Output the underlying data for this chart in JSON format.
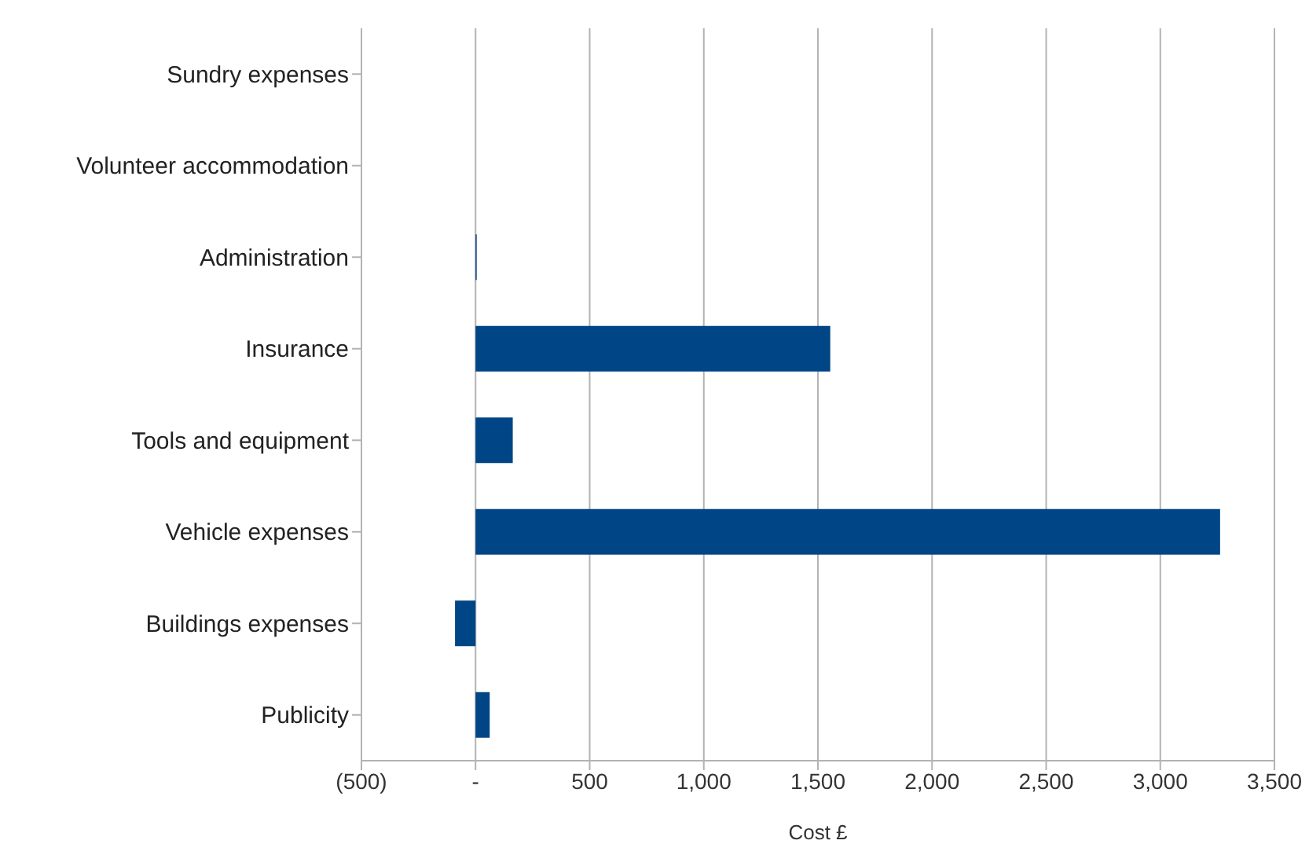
{
  "chart_data": {
    "type": "bar",
    "orientation": "horizontal",
    "xlabel": "Cost £",
    "categories": [
      "Sundry expenses",
      "Volunteer accommodation",
      "Administration",
      "Insurance",
      "Tools and equipment",
      "Vehicle expenses",
      "Buildings expenses",
      "Publicity"
    ],
    "values": [
      0,
      0,
      5,
      1554,
      163,
      3262,
      -90,
      62
    ],
    "color": "#004586",
    "xlim": [
      -500,
      3500
    ],
    "xticks": [
      {
        "value": -500,
        "label": "(500)"
      },
      {
        "value": 0,
        "label": "-"
      },
      {
        "value": 500,
        "label": "500"
      },
      {
        "value": 1000,
        "label": "1,000"
      },
      {
        "value": 1500,
        "label": "1,500"
      },
      {
        "value": 2000,
        "label": "2,000"
      },
      {
        "value": 2500,
        "label": "2,500"
      },
      {
        "value": 3000,
        "label": "3,000"
      },
      {
        "value": 3500,
        "label": "3,500"
      }
    ],
    "grid": "x"
  }
}
